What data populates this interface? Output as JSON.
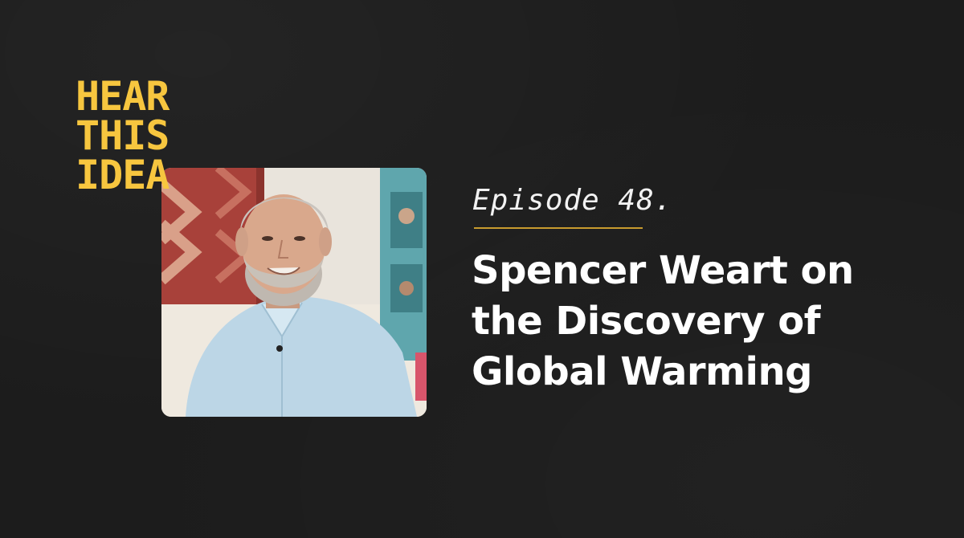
{
  "logo": {
    "lines": [
      "HEAR",
      "THIS",
      "IDEA"
    ],
    "color": "#f7c63f"
  },
  "episode": {
    "label": "Episode 48."
  },
  "title": {
    "lines": [
      "Spencer Weart on",
      "the Discovery of",
      "Global Warming"
    ]
  },
  "colors": {
    "background": "#1c1c1c",
    "accent": "#f7c63f",
    "divider": "#c89b2e",
    "text": "#ffffff"
  }
}
